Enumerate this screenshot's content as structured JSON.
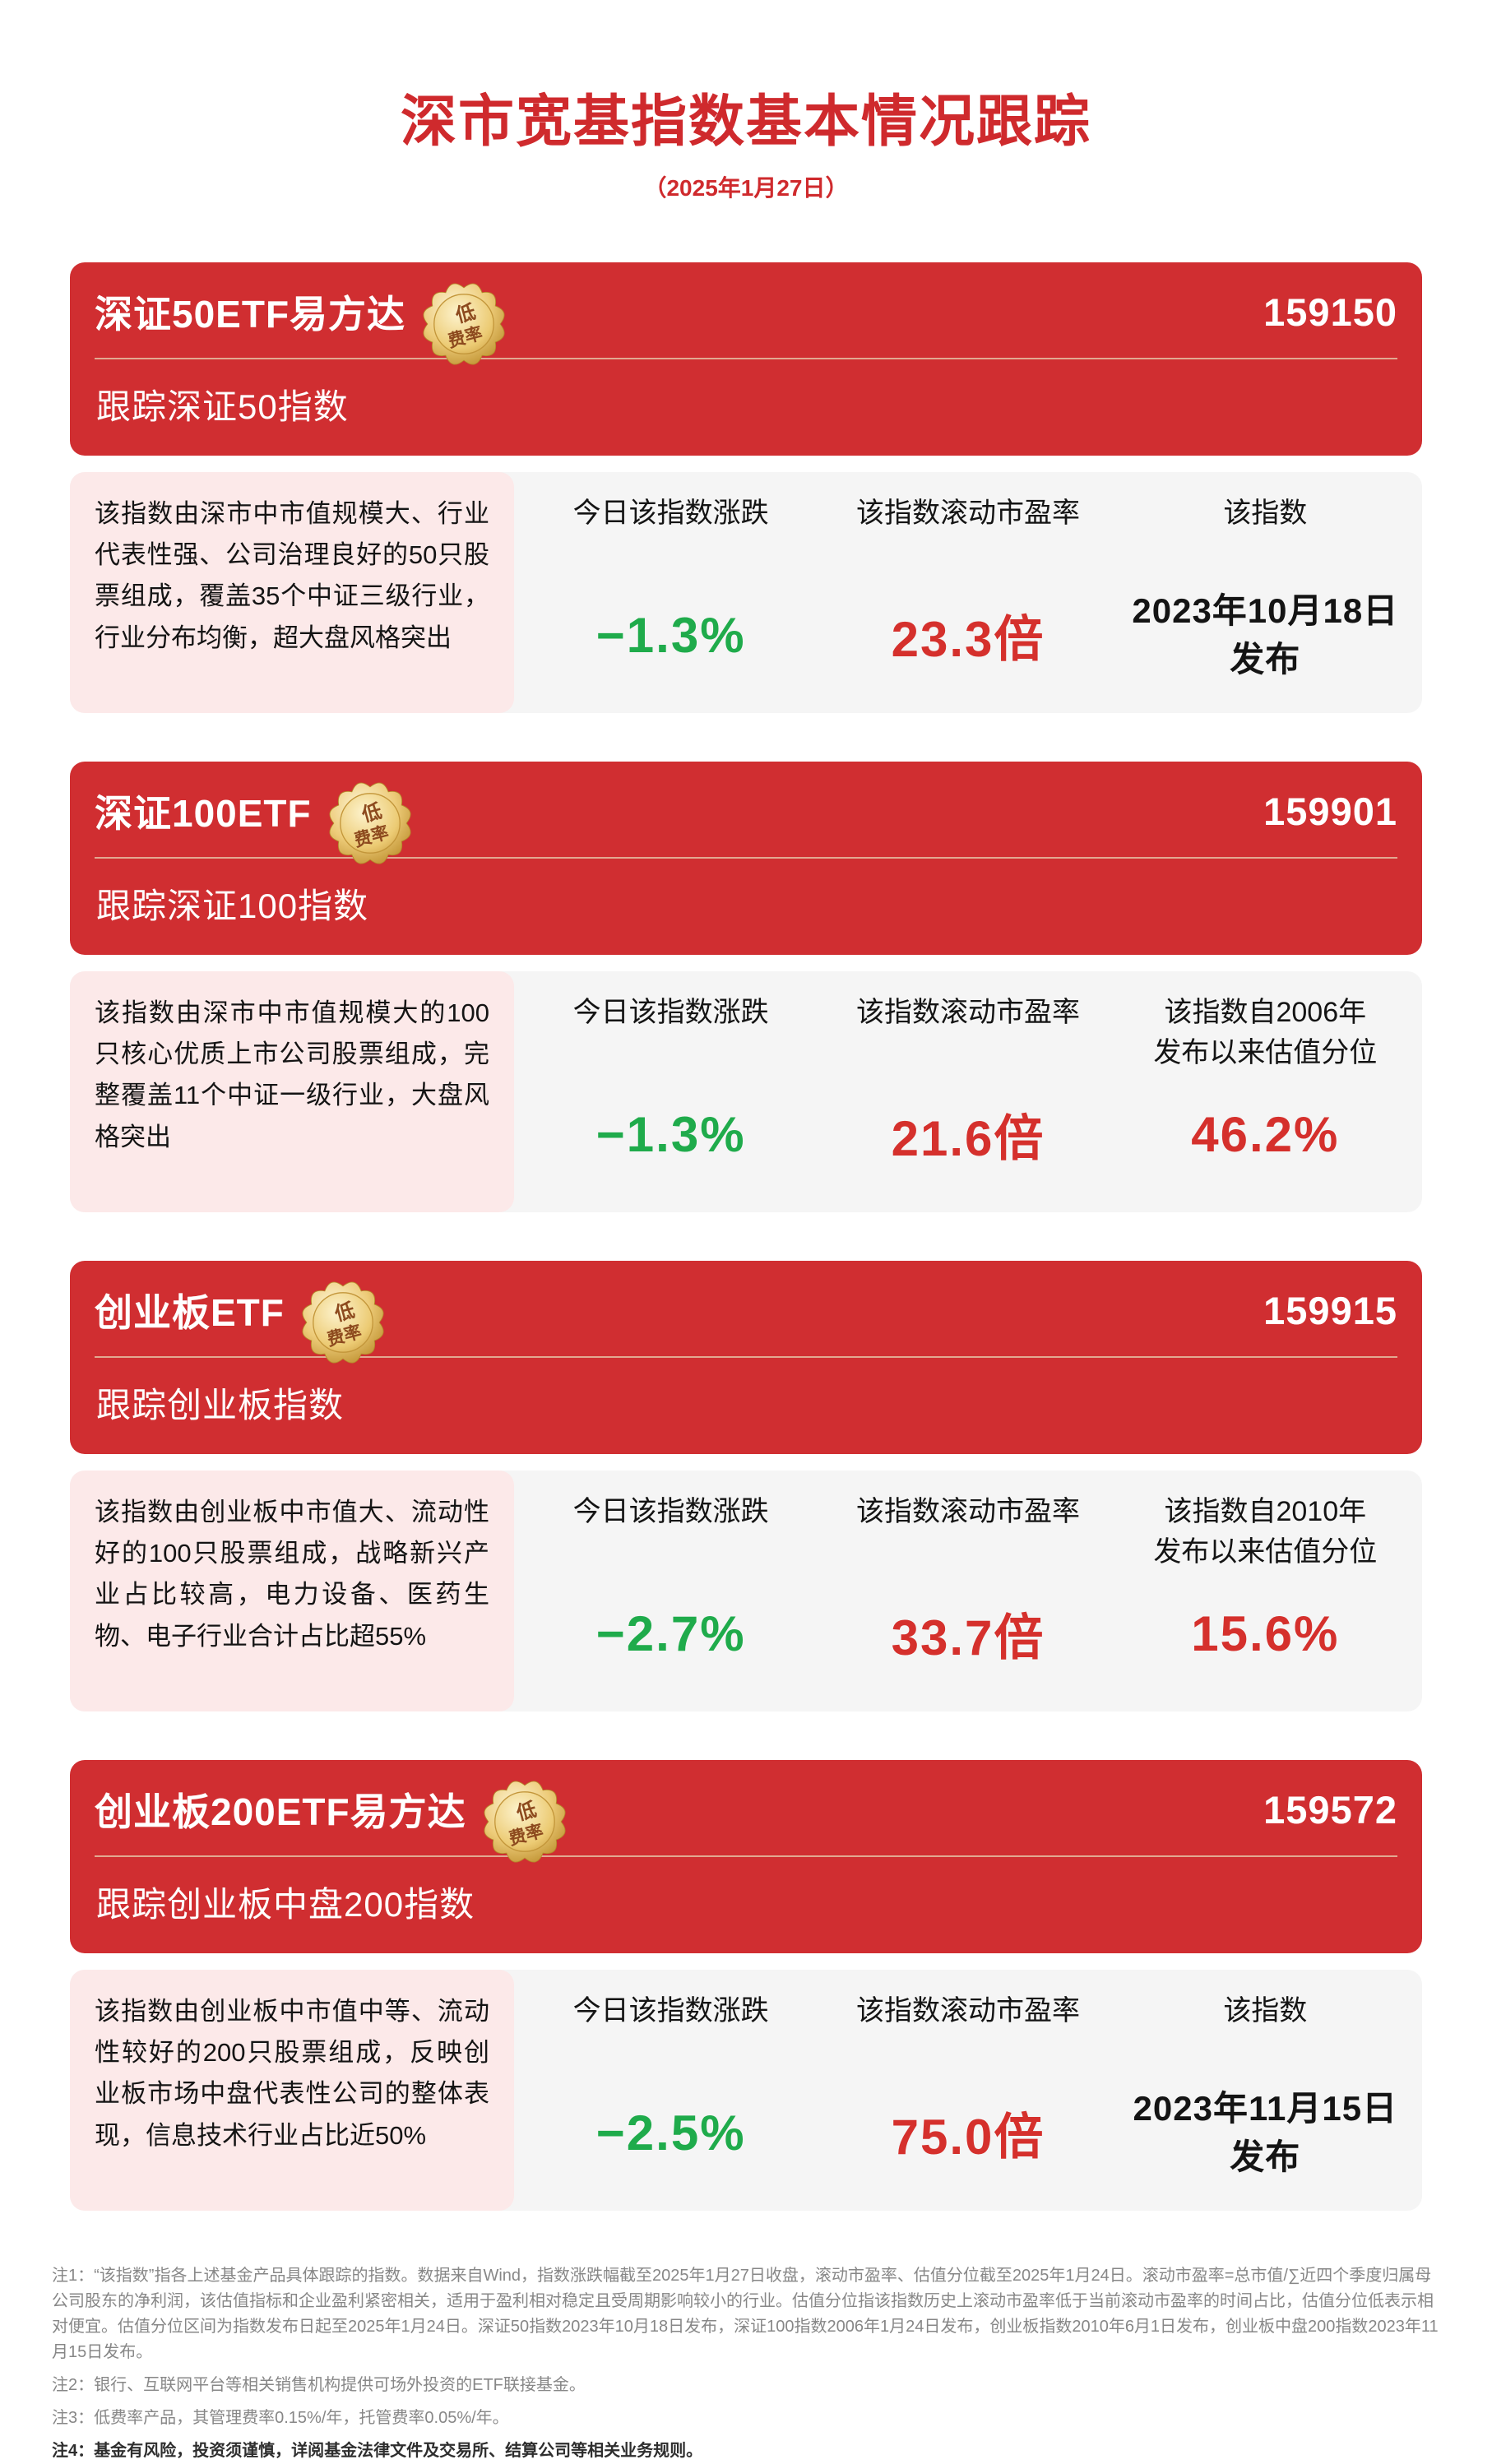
{
  "header": {
    "title": "深市宽基指数基本情况跟踪",
    "date": "（2025年1月27日）"
  },
  "badge": {
    "text_top": "低",
    "text_bottom": "费率"
  },
  "cards": [
    {
      "name": "深证50ETF易方达",
      "code": "159150",
      "tracking": "跟踪深证50指数",
      "description": "该指数由深市中市值规模大、行业代表性强、公司治理良好的50只股票组成，覆盖35个中证三级行业，行业分布均衡，超大盘风格突出",
      "stats": [
        {
          "label": "今日该指数涨跌",
          "value": "−1.3%",
          "color": "green"
        },
        {
          "label": "该指数滚动市盈率",
          "value": "23.3倍",
          "color": "red"
        },
        {
          "label": "该指数",
          "value": "2023年10月18日\n发布",
          "color": "dark"
        }
      ]
    },
    {
      "name": "深证100ETF",
      "code": "159901",
      "tracking": "跟踪深证100指数",
      "description": "该指数由深市中市值规模大的100只核心优质上市公司股票组成，完整覆盖11个中证一级行业，大盘风格突出",
      "stats": [
        {
          "label": "今日该指数涨跌",
          "value": "−1.3%",
          "color": "green"
        },
        {
          "label": "该指数滚动市盈率",
          "value": "21.6倍",
          "color": "red"
        },
        {
          "label": "该指数自2006年\n发布以来估值分位",
          "value": "46.2%",
          "color": "red"
        }
      ]
    },
    {
      "name": "创业板ETF",
      "code": "159915",
      "tracking": "跟踪创业板指数",
      "description": "该指数由创业板中市值大、流动性好的100只股票组成，战略新兴产业占比较高，电力设备、医药生物、电子行业合计占比超55%",
      "stats": [
        {
          "label": "今日该指数涨跌",
          "value": "−2.7%",
          "color": "green"
        },
        {
          "label": "该指数滚动市盈率",
          "value": "33.7倍",
          "color": "red"
        },
        {
          "label": "该指数自2010年\n发布以来估值分位",
          "value": "15.6%",
          "color": "red"
        }
      ]
    },
    {
      "name": "创业板200ETF易方达",
      "code": "159572",
      "tracking": "跟踪创业板中盘200指数",
      "description": "该指数由创业板中市值中等、流动性较好的200只股票组成，反映创业板市场中盘代表性公司的整体表现，信息技术行业占比近50%",
      "stats": [
        {
          "label": "今日该指数涨跌",
          "value": "−2.5%",
          "color": "green"
        },
        {
          "label": "该指数滚动市盈率",
          "value": "75.0倍",
          "color": "red"
        },
        {
          "label": "该指数",
          "value": "2023年11月15日\n发布",
          "color": "dark"
        }
      ]
    }
  ],
  "notes": {
    "items": [
      "注1：“该指数”指各上述基金产品具体跟踪的指数。数据来自Wind，指数涨跌幅截至2025年1月27日收盘，滚动市盈率、估值分位截至2025年1月24日。滚动市盈率=总市值/∑近四个季度归属母公司股东的净利润，该估值指标和企业盈利紧密相关，适用于盈利相对稳定且受周期影响较小的行业。估值分位指该指数历史上滚动市盈率低于当前滚动市盈率的时间占比，估值分位低表示相对便宜。估值分位区间为指数发布日起至2025年1月24日。深证50指数2023年10月18日发布，深证100指数2006年1月24日发布，创业板指数2010年6月1日发布，创业板中盘200指数2023年11月15日发布。",
      "注2：银行、互联网平台等相关销售机构提供可场外投资的ETF联接基金。",
      "注3：低费率产品，其管理费率0.15%/年，托管费率0.05%/年。",
      "注4：基金有风险，投资须谨慎，详阅基金法律文件及交易所、结算公司等相关业务规则。"
    ]
  },
  "colors": {
    "banner_red": "#d02e31",
    "title_red": "#cf2a2d",
    "value_green": "#1fab4b",
    "value_red": "#d5302c",
    "desc_pink": "#fce9e9",
    "panel_gray": "#f5f5f5",
    "badge_gold": "#edcb78"
  }
}
